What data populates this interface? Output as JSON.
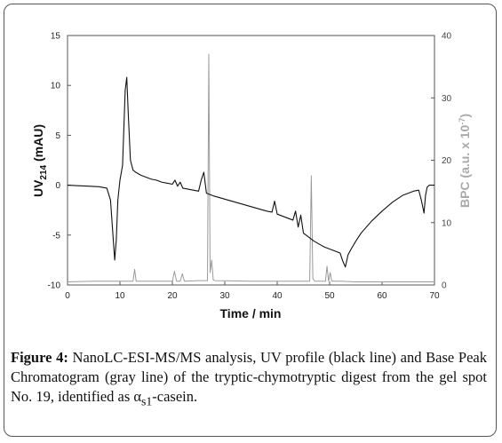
{
  "chart_data": {
    "type": "line",
    "xlabel": "Time / min",
    "ylabel_left": {
      "main": "UV",
      "sub": "214",
      "rest": " (mAU)"
    },
    "ylabel_right": {
      "main": "BPC (a.u. x 10",
      "sup": "-7",
      "rest": ")"
    },
    "xlim": [
      0,
      70
    ],
    "ylim_left": [
      -10,
      15
    ],
    "ylim_right": [
      0,
      40
    ],
    "x_ticks": [
      "0",
      "10",
      "20",
      "30",
      "40",
      "50",
      "60",
      "70"
    ],
    "y_left_ticks": [
      "-10",
      "-5",
      "0",
      "5",
      "10",
      "15"
    ],
    "y_right_ticks": [
      "0",
      "10",
      "20",
      "30",
      "40"
    ],
    "series": [
      {
        "color": "#111111",
        "axis": "left",
        "x": [
          0,
          2,
          4,
          6,
          7.5,
          8.2,
          8.6,
          9.0,
          9.3,
          9.6,
          10.0,
          10.5,
          11.0,
          11.3,
          11.6,
          12.0,
          12.5,
          13,
          14,
          15,
          16,
          17,
          18,
          19,
          20,
          20.5,
          21,
          21.5,
          22,
          23,
          24,
          25,
          25.5,
          26,
          26.5,
          27,
          28,
          30,
          32,
          34,
          36,
          38,
          39,
          39.5,
          40,
          41,
          42,
          43,
          43.5,
          44,
          44.5,
          45,
          46,
          47,
          48,
          49,
          50,
          51,
          52,
          52.5,
          53,
          53.5,
          54,
          55,
          56,
          58,
          60,
          62,
          64,
          66,
          67,
          67.5,
          68,
          68.3,
          68.6,
          69,
          70
        ],
        "y": [
          0.0,
          -0.05,
          -0.1,
          -0.15,
          -0.3,
          -1.5,
          -4.5,
          -7.5,
          -5.5,
          -1.5,
          0.5,
          2.0,
          9.5,
          10.8,
          7.0,
          2.5,
          1.5,
          1.3,
          1.0,
          0.8,
          0.6,
          0.5,
          0.3,
          0.2,
          0.1,
          0.5,
          -0.1,
          0.3,
          -0.3,
          -0.4,
          -0.5,
          -0.6,
          0.5,
          1.3,
          -0.8,
          -0.9,
          -1.1,
          -1.4,
          -1.7,
          -2.0,
          -2.3,
          -2.6,
          -2.7,
          -1.6,
          -2.9,
          -3.1,
          -3.3,
          -3.5,
          -2.6,
          -4.2,
          -3.0,
          -4.8,
          -5.2,
          -5.6,
          -5.9,
          -6.2,
          -6.4,
          -6.6,
          -6.8,
          -7.6,
          -8.2,
          -7.0,
          -6.5,
          -5.6,
          -4.8,
          -3.6,
          -2.6,
          -1.7,
          -1.0,
          -0.6,
          -0.5,
          -1.5,
          -2.8,
          -1.0,
          -0.2,
          0.0,
          0.0
        ]
      },
      {
        "color": "#9a9a9a",
        "axis": "right",
        "x": [
          0,
          5,
          10,
          12.5,
          12.8,
          13.1,
          15,
          20,
          20.4,
          20.8,
          21.5,
          21.9,
          22.3,
          25,
          26.7,
          26.95,
          27.2,
          27.5,
          27.8,
          28.1,
          35,
          40,
          46.2,
          46.5,
          46.8,
          47.2,
          49.2,
          49.5,
          49.8,
          50.1,
          50.4,
          50.7,
          52,
          55,
          60,
          65,
          70
        ],
        "y": [
          0.5,
          0.6,
          0.6,
          0.6,
          2.5,
          0.6,
          0.6,
          0.6,
          2.2,
          0.6,
          0.6,
          1.8,
          0.6,
          0.7,
          0.7,
          37.0,
          2.0,
          4.0,
          0.8,
          0.7,
          0.6,
          0.6,
          0.6,
          17.5,
          1.0,
          0.6,
          0.6,
          3.0,
          0.6,
          2.0,
          0.6,
          0.6,
          0.6,
          0.5,
          0.5,
          0.5,
          0.5
        ]
      }
    ],
    "grid": false,
    "legend": "none"
  },
  "caption": {
    "label": "Figure 4:",
    "text_before": " NanoLC-ESI-MS/MS analysis, UV profile (black line) and Base Peak Chromatogram (gray line) of the tryptic-chymotryptic digest from the gel spot No. 19, identified as α",
    "sub": "s1",
    "text_after": "-casein."
  }
}
